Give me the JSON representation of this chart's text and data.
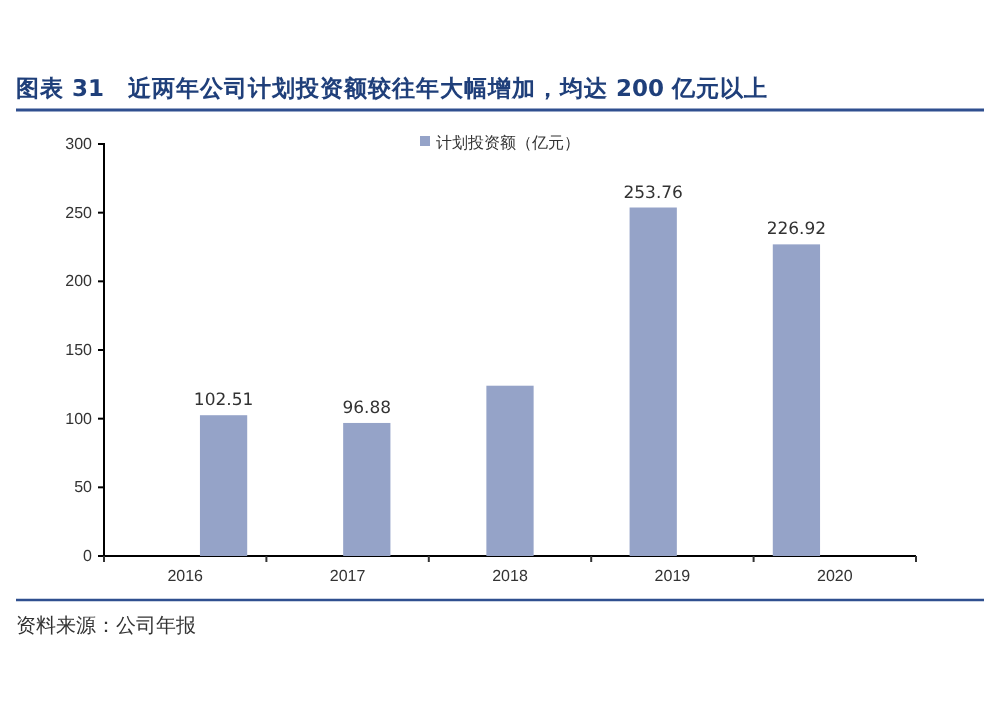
{
  "chart_data": {
    "type": "bar",
    "title": "图表 31　近两年公司计划投资额较往年大幅增加，均达 200 亿元以上",
    "categories": [
      "2016",
      "2017",
      "2018",
      "2019",
      "2020"
    ],
    "series": [
      {
        "name": "计划投资额（亿元）",
        "color": "#95a3c8",
        "values": [
          102.51,
          96.88,
          124,
          253.76,
          226.92
        ],
        "value_labels": [
          "102.51",
          "96.88",
          null,
          "253.76",
          "226.92"
        ]
      }
    ],
    "ylim": [
      0,
      300
    ],
    "yticks": [
      0,
      50,
      100,
      150,
      200,
      250,
      300
    ],
    "grid": false,
    "legend": "top",
    "annotations": [
      "资料来源：公司年报"
    ]
  }
}
